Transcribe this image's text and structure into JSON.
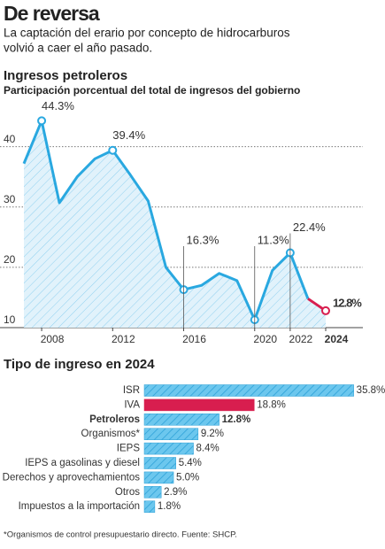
{
  "header": {
    "title": "De reversa",
    "subtitle": [
      "La captación del erario por concepto de hidrocarburos",
      "volvió a caer el año pasado."
    ]
  },
  "chart_data": [
    {
      "type": "line",
      "title": "Ingresos petroleros",
      "subtitle": "Participación porcentual del total de ingresos del gobierno",
      "x": [
        2007,
        2008,
        2009,
        2010,
        2011,
        2012,
        2013,
        2014,
        2015,
        2016,
        2017,
        2018,
        2019,
        2020,
        2021,
        2022,
        2023,
        2024
      ],
      "values": [
        37.2,
        44.3,
        30.7,
        35,
        38,
        39.4,
        35.3,
        31,
        20,
        16.3,
        17,
        19,
        17.8,
        11.3,
        19.5,
        22.4,
        14.8,
        12.8
      ],
      "value_labels": [
        null,
        "44.3%",
        null,
        null,
        null,
        "39.4%",
        null,
        null,
        null,
        "16.3%",
        null,
        null,
        null,
        "11.3%",
        null,
        "22.4%",
        null,
        "12.8%"
      ],
      "xlim": [
        2007,
        2024
      ],
      "xticks": [
        2008,
        2012,
        2016,
        2020,
        2022,
        2024
      ],
      "ylim": [
        10,
        47
      ],
      "yticks": [
        10,
        20,
        30,
        40
      ],
      "grid": true,
      "area": true,
      "color": "#29a8e0",
      "highlight_color": "#d81e4f"
    },
    {
      "type": "bar",
      "orientation": "horizontal",
      "title": "Tipo de ingreso en 2024",
      "categories": [
        "ISR",
        "IVA",
        "Petroleros",
        "Organismos*",
        "IEPS",
        "IEPS a gasolinas y diesel",
        "Derechos y aprovechamientos",
        "Otros",
        "Impuestos a la importación"
      ],
      "values": [
        35.8,
        18.8,
        12.8,
        9.2,
        8.4,
        5.4,
        5.0,
        2.9,
        1.8
      ],
      "value_labels": [
        "35.8%",
        "18.8%",
        "12.8%",
        "9.2%",
        "8.4%",
        "5.4%",
        "5.0%",
        "2.9%",
        "1.8%"
      ],
      "xlim": [
        0,
        36
      ],
      "colors": [
        "#2a9fd6",
        "#d81e4f",
        "#2a9fd6",
        "#2a9fd6",
        "#2a9fd6",
        "#2a9fd6",
        "#2a9fd6",
        "#2a9fd6",
        "#2a9fd6"
      ],
      "highlight": 2
    }
  ],
  "footnote": "*Organismos de control presupuestario directo. Fuente: SHCP."
}
